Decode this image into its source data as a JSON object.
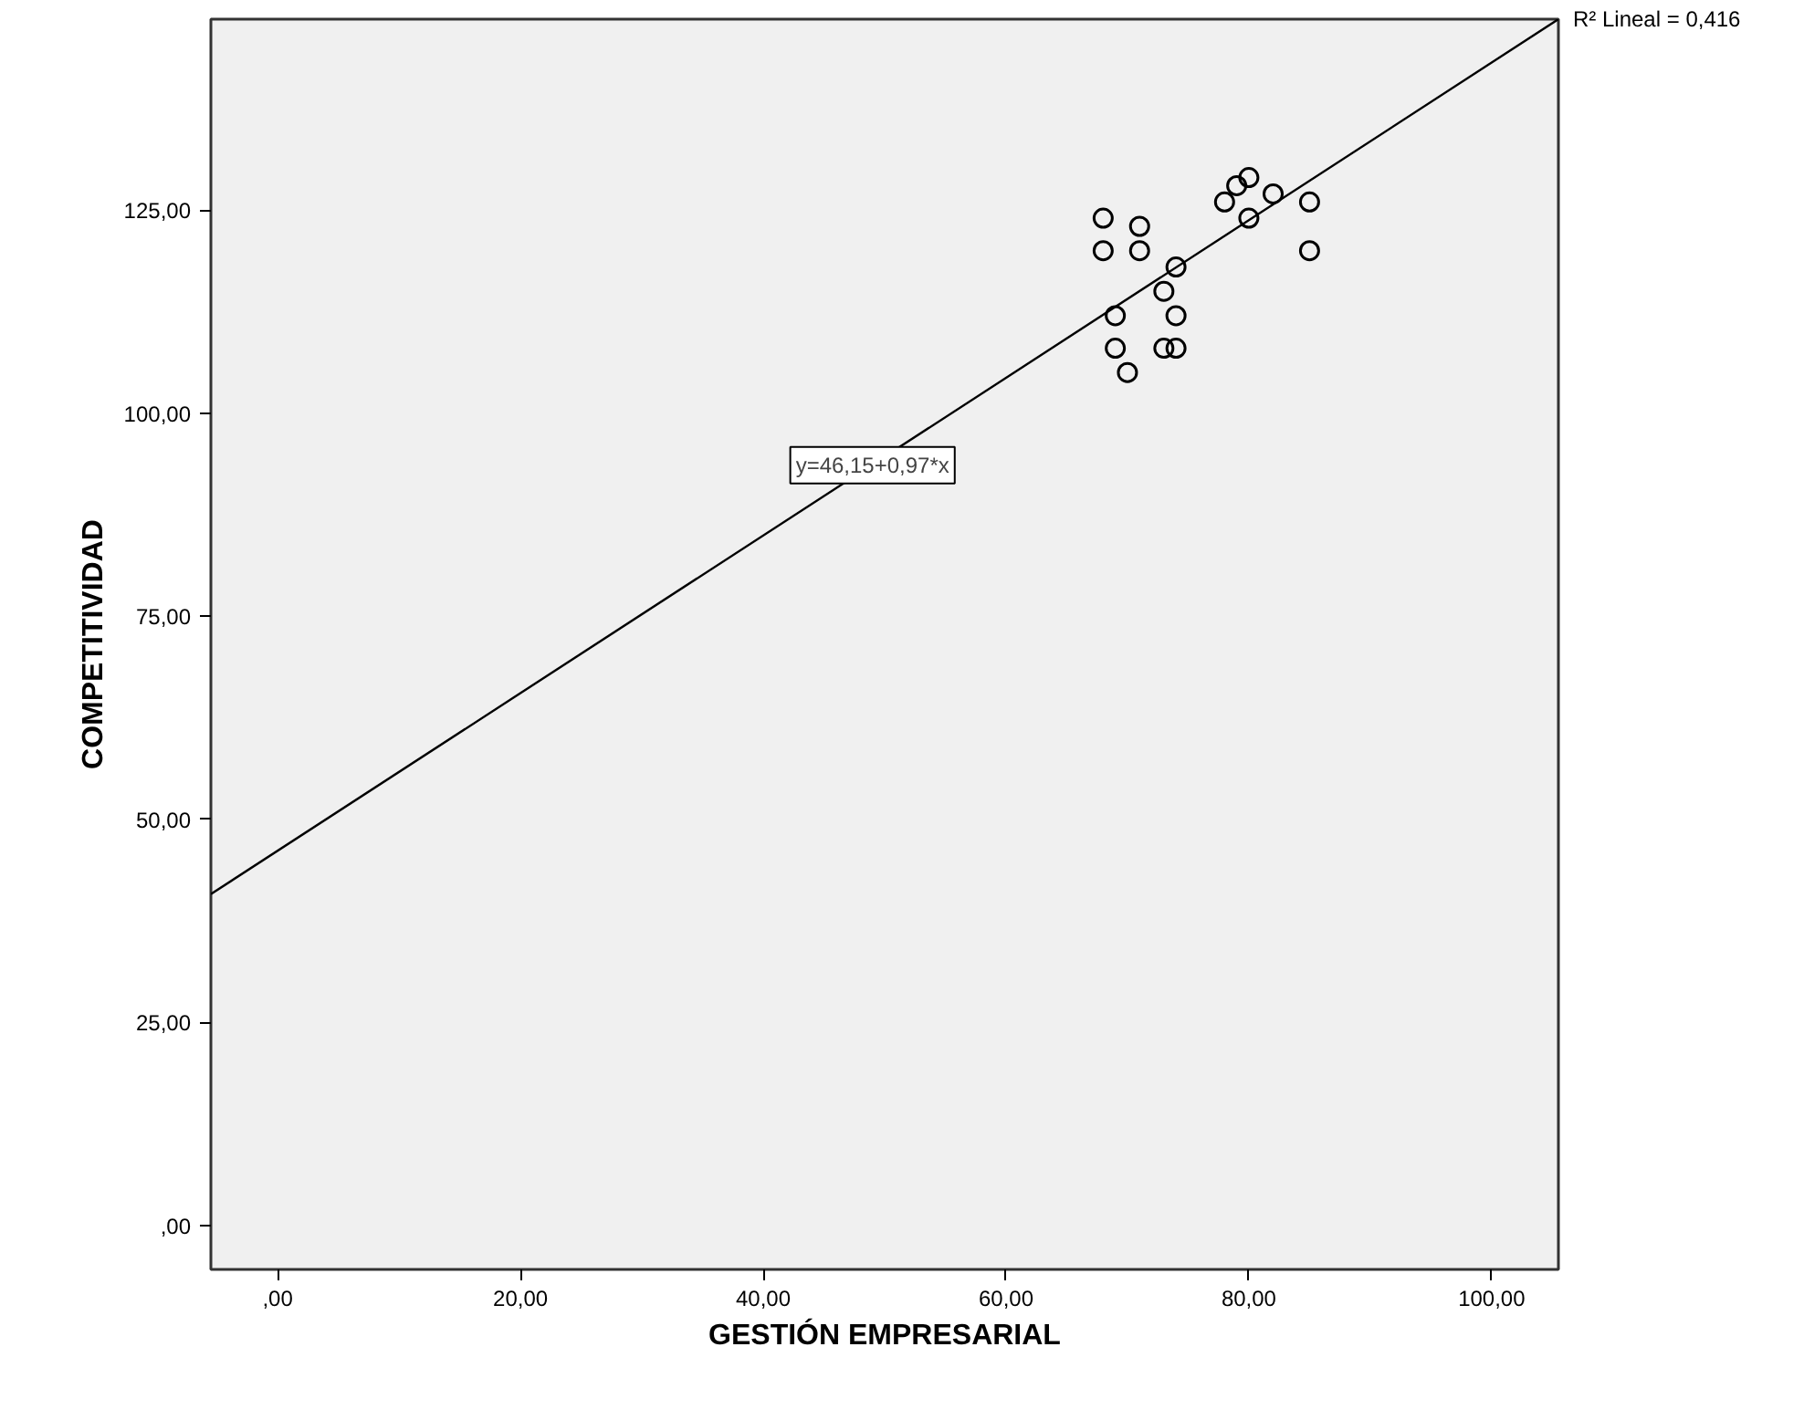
{
  "chart_data": {
    "type": "scatter",
    "xlabel": "GESTIÓN EMPRESARIAL",
    "ylabel": "COMPETITIVIDAD",
    "xlim": [
      -5.5,
      105.5
    ],
    "ylim": [
      -5.4,
      148.5
    ],
    "xticks": [
      {
        "value": 0,
        "label": ",00"
      },
      {
        "value": 20,
        "label": "20,00"
      },
      {
        "value": 40,
        "label": "40,00"
      },
      {
        "value": 60,
        "label": "60,00"
      },
      {
        "value": 80,
        "label": "80,00"
      },
      {
        "value": 100,
        "label": "100,00"
      }
    ],
    "yticks": [
      {
        "value": 0,
        "label": ",00"
      },
      {
        "value": 25,
        "label": "25,00"
      },
      {
        "value": 50,
        "label": "50,00"
      },
      {
        "value": 75,
        "label": "75,00"
      },
      {
        "value": 100,
        "label": "100,00"
      },
      {
        "value": 125,
        "label": "125,00"
      }
    ],
    "grid": false,
    "marker": "circle",
    "series": [
      {
        "color": "#000000",
        "x": [
          68,
          68,
          71,
          71,
          74,
          73,
          69,
          74,
          69,
          73,
          74,
          70,
          78,
          79,
          80,
          82,
          80,
          85,
          85
        ],
        "values": [
          124,
          120,
          123,
          120,
          118,
          115,
          112,
          112,
          108,
          108,
          108,
          105,
          126,
          128,
          129,
          127,
          124,
          126,
          120
        ]
      },
      {
        "type": "line",
        "marker": "none",
        "color": "#000000",
        "x": [
          -5.5,
          105.5
        ],
        "values": [
          40.8,
          148.5
        ]
      }
    ],
    "annotations": [
      {
        "text": "y=46,15+0,97*x",
        "x": 49,
        "y": 93.6
      },
      "R² Lineal = 0,416"
    ]
  }
}
